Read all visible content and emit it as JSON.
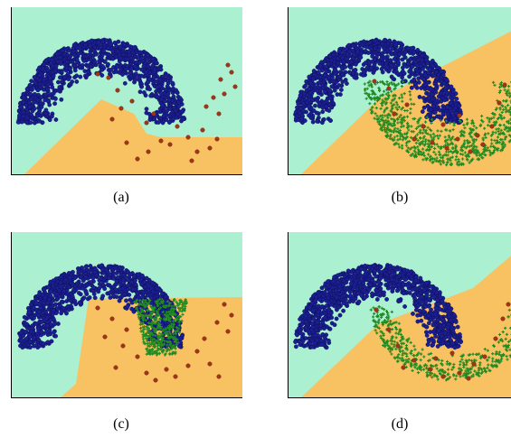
{
  "colors": {
    "background_class_a": "#aaf0d1",
    "background_class_b": "#f8c263",
    "moon_points": "#1b1f8f",
    "moon_points_edge": "#0b0d55",
    "sparse_points": "#a23418",
    "generated_points": "#228b22",
    "frame": "#000000"
  },
  "figure": {
    "panels": [
      {
        "id": "a",
        "caption": "(a)",
        "generated": "none"
      },
      {
        "id": "b",
        "caption": "(b)",
        "generated": "lower-moon"
      },
      {
        "id": "c",
        "caption": "(c)",
        "generated": "gap-column"
      },
      {
        "id": "d",
        "caption": "(d)",
        "generated": "lower-moon-thin"
      }
    ]
  },
  "chart_data": {
    "type": "scatter",
    "xlim": [
      -1.2,
      2.2
    ],
    "ylim": [
      -0.85,
      1.15
    ],
    "grid": false,
    "legend": "none",
    "series": [
      {
        "class": "upper-moon",
        "color": "#1b1f8f",
        "center": [
          0,
          0
        ],
        "radius_range": [
          0.55,
          0.95
        ],
        "angle_range_deg": [
          0,
          180
        ],
        "count": 1200
      },
      {
        "class": "sparse-points",
        "color": "#a23418",
        "count": 55
      },
      {
        "class": "generated",
        "color": "#228b22",
        "count": 700
      }
    ]
  }
}
